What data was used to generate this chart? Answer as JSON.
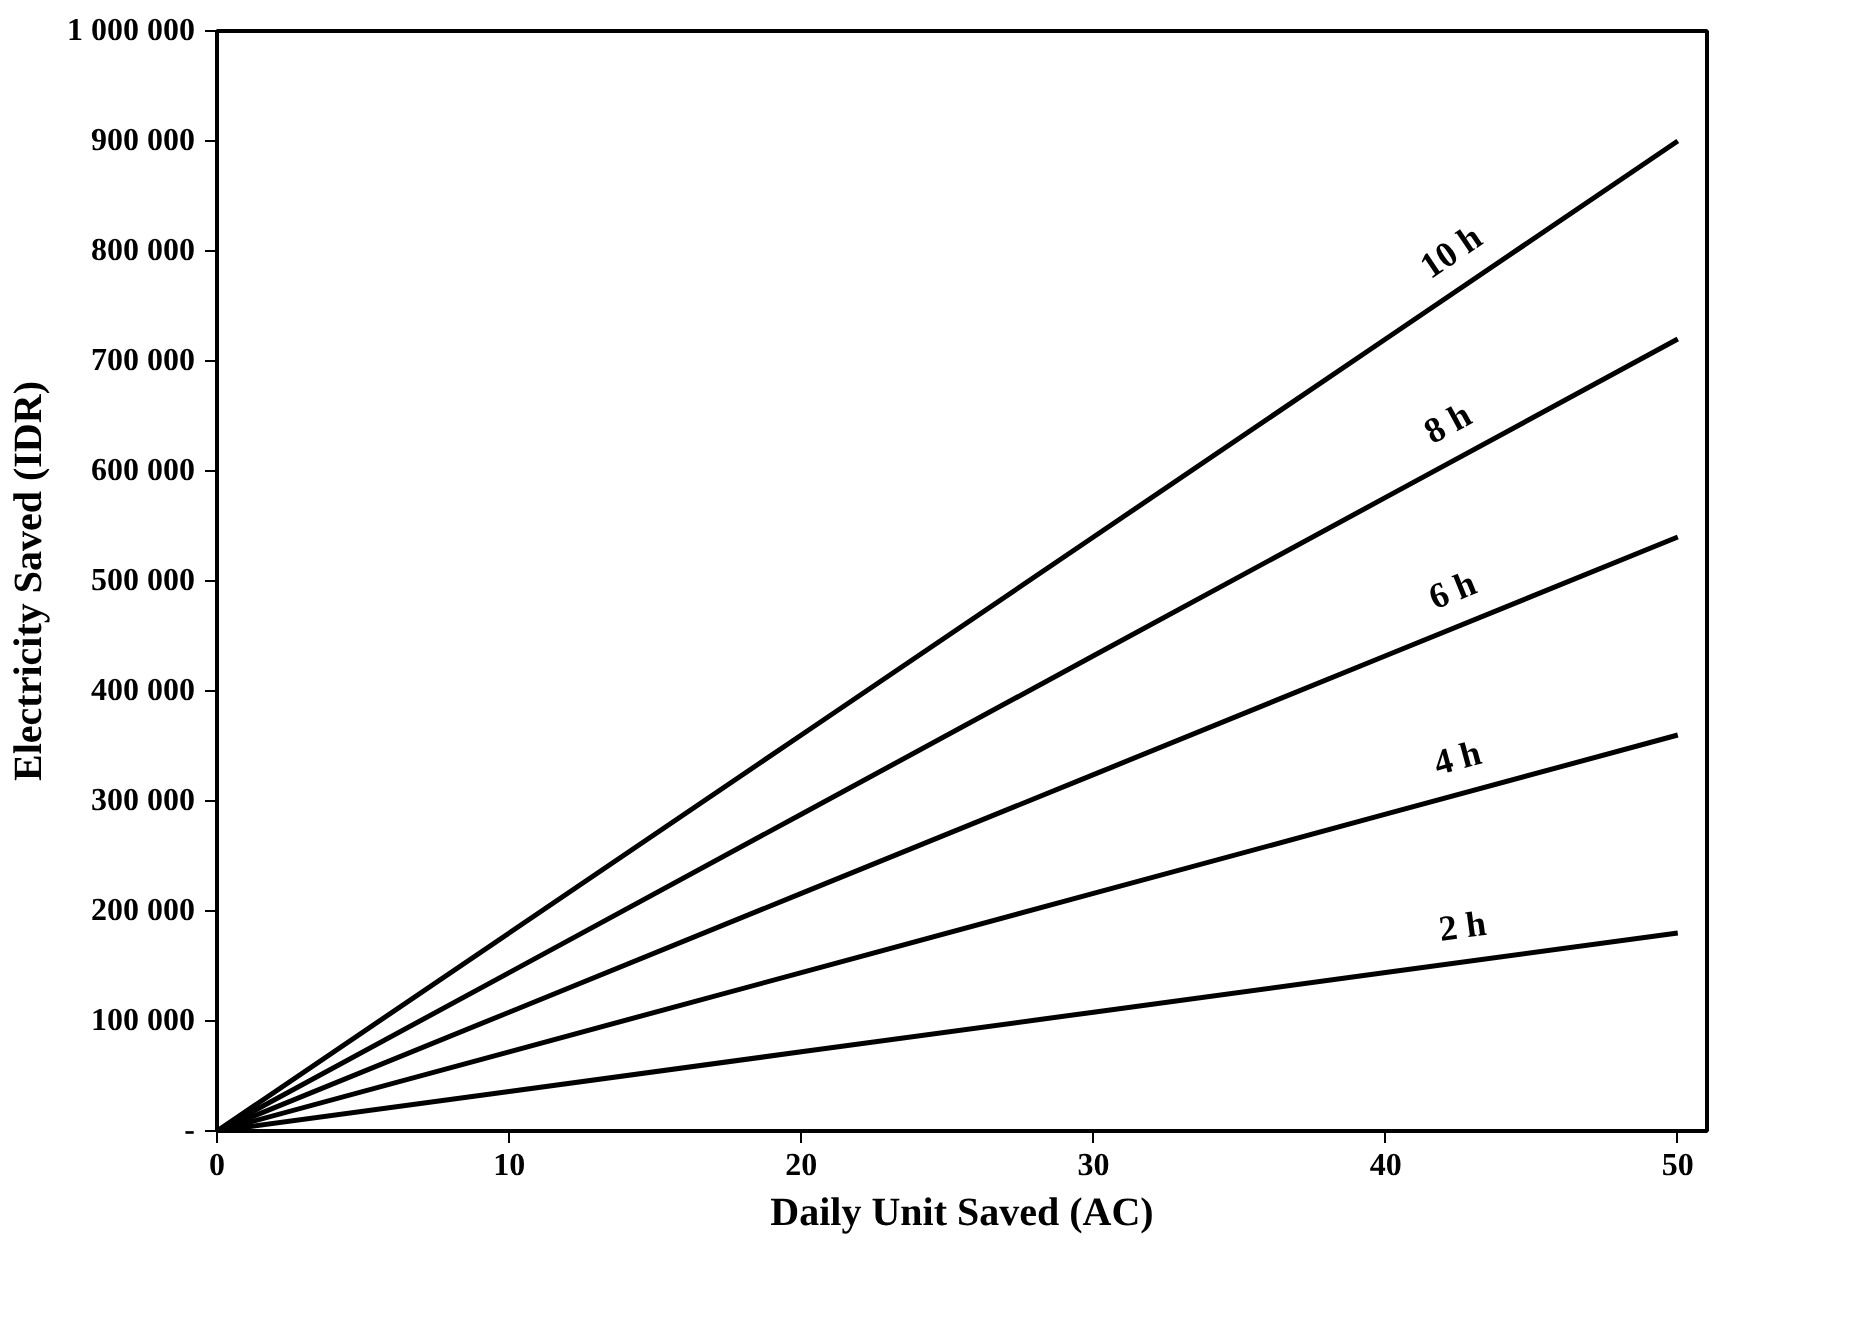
{
  "chart_data": {
    "type": "line",
    "xlabel": "Daily Unit Saved (AC)",
    "ylabel": "Electricity Saved (IDR)",
    "x": [
      0,
      10,
      20,
      30,
      40,
      50
    ],
    "series": [
      {
        "name": "10 h",
        "color": "#000000",
        "values": [
          0,
          180000,
          360000,
          540000,
          720000,
          900000
        ]
      },
      {
        "name": "8 h",
        "color": "#000000",
        "values": [
          0,
          144000,
          288000,
          432000,
          576000,
          720000
        ]
      },
      {
        "name": "6 h",
        "color": "#000000",
        "values": [
          0,
          108000,
          216000,
          324000,
          432000,
          540000
        ]
      },
      {
        "name": "4 h",
        "color": "#000000",
        "values": [
          0,
          72000,
          144000,
          216000,
          288000,
          360000
        ]
      },
      {
        "name": "2 h",
        "color": "#000000",
        "values": [
          0,
          36000,
          72000,
          108000,
          144000,
          180000
        ]
      }
    ],
    "xlim": [
      0,
      51
    ],
    "ylim": [
      0,
      1000000
    ],
    "xticks": [
      0,
      10,
      20,
      30,
      40,
      50
    ],
    "yticks": [
      {
        "value": 0,
        "label": "-"
      },
      {
        "value": 100000,
        "label": "100 000"
      },
      {
        "value": 200000,
        "label": "200 000"
      },
      {
        "value": 300000,
        "label": "300 000"
      },
      {
        "value": 400000,
        "label": "400 000"
      },
      {
        "value": 500000,
        "label": "500 000"
      },
      {
        "value": 600000,
        "label": "600 000"
      },
      {
        "value": 700000,
        "label": "700 000"
      },
      {
        "value": 800000,
        "label": "800 000"
      },
      {
        "value": 900000,
        "label": "900 000"
      },
      {
        "value": 1000000,
        "label": "1 000 000"
      }
    ],
    "grid": false,
    "marker": "none",
    "line_style": "solid"
  }
}
